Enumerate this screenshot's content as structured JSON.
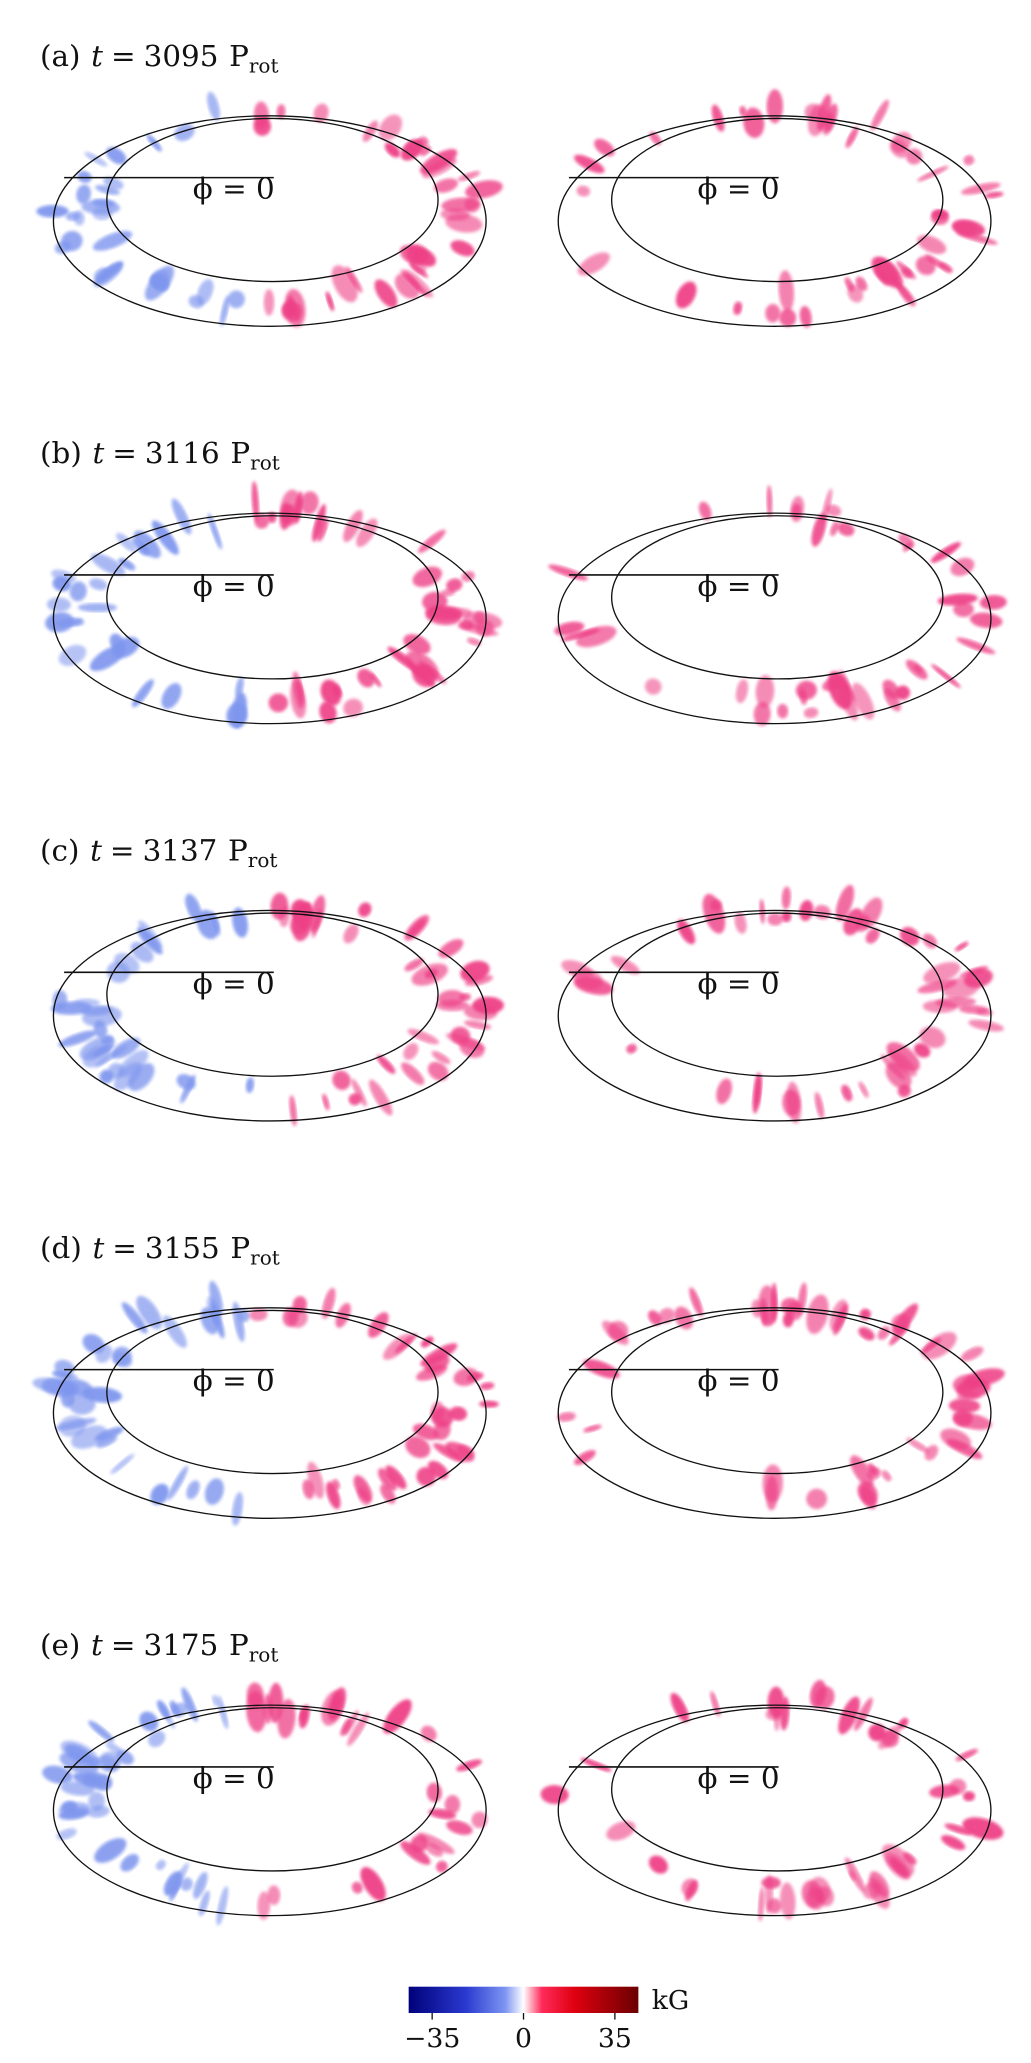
{
  "panels": [
    {
      "label": "(a)",
      "time": "3095"
    },
    {
      "label": "(b)",
      "time": "3116"
    },
    {
      "label": "(c)",
      "time": "3137"
    },
    {
      "label": "(d)",
      "time": "3155"
    },
    {
      "label": "(e)",
      "time": "3175"
    }
  ],
  "time_symbol": "t",
  "equals": "=",
  "unit": "P",
  "unit_subscript": "rot",
  "phi_label": "ϕ = 0",
  "colorbar": {
    "unit": "kG",
    "limits": [
      -44,
      44
    ],
    "ticks": [
      {
        "value": -35,
        "label": "−35"
      },
      0,
      35
    ]
  }
}
